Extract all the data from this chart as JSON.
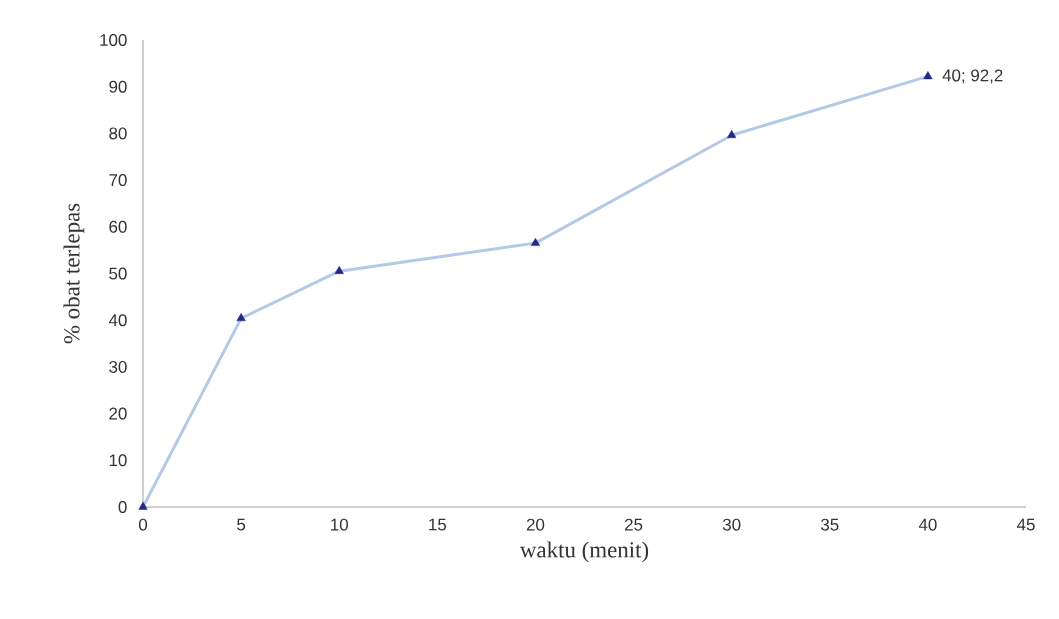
{
  "chart_data": {
    "type": "line",
    "x": [
      0,
      5,
      10,
      20,
      30,
      40
    ],
    "series": [
      {
        "color": "#b4c9e6",
        "values": [
          0,
          40.4,
          50.5,
          56.5,
          79.6,
          92.2
        ]
      }
    ],
    "xlabel": "waktu (menit)",
    "ylabel": "% obat terlepas",
    "xlim": [
      0,
      45
    ],
    "ylim": [
      0,
      100
    ],
    "xticks": [
      0,
      5,
      10,
      15,
      20,
      25,
      30,
      35,
      40,
      45
    ],
    "yticks": [
      0,
      10,
      20,
      30,
      40,
      50,
      60,
      70,
      80,
      90,
      100
    ],
    "annotations": [
      {
        "text": "40; 92,2",
        "x": 40,
        "y": 92.2
      }
    ],
    "marker": "triangle",
    "grid": false
  }
}
